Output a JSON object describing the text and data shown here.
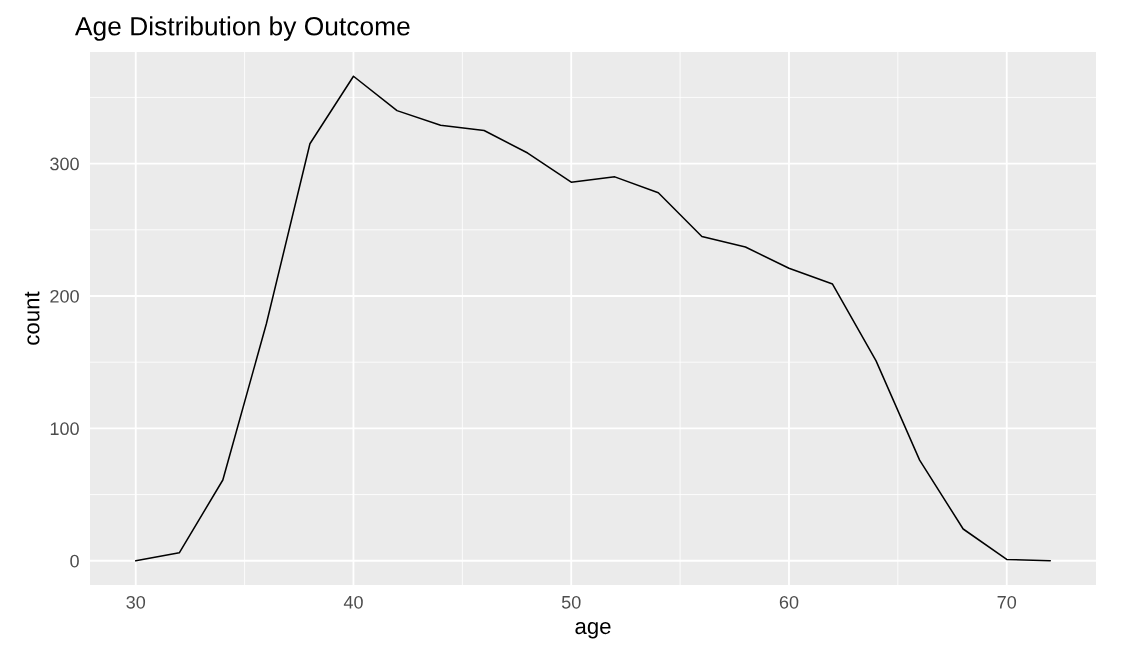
{
  "chart_data": {
    "type": "line",
    "title": "Age Distribution by Outcome",
    "xlabel": "age",
    "ylabel": "count",
    "x": [
      30,
      32,
      34,
      36,
      38,
      40,
      42,
      44,
      46,
      48,
      50,
      52,
      54,
      56,
      58,
      60,
      62,
      64,
      66,
      68,
      70,
      72
    ],
    "series": [
      {
        "color": "#000000",
        "values": [
          0,
          6,
          61,
          179,
          315,
          366,
          340,
          329,
          325,
          308,
          286,
          290,
          278,
          245,
          237,
          221,
          209,
          151,
          76,
          24,
          1,
          0
        ]
      }
    ],
    "xlim": [
      27.9,
      74.1
    ],
    "ylim": [
      -18.3,
      384.3
    ],
    "xticks": [
      30,
      40,
      50,
      60,
      70
    ],
    "yticks": [
      0,
      100,
      200,
      300
    ],
    "grid": true
  }
}
